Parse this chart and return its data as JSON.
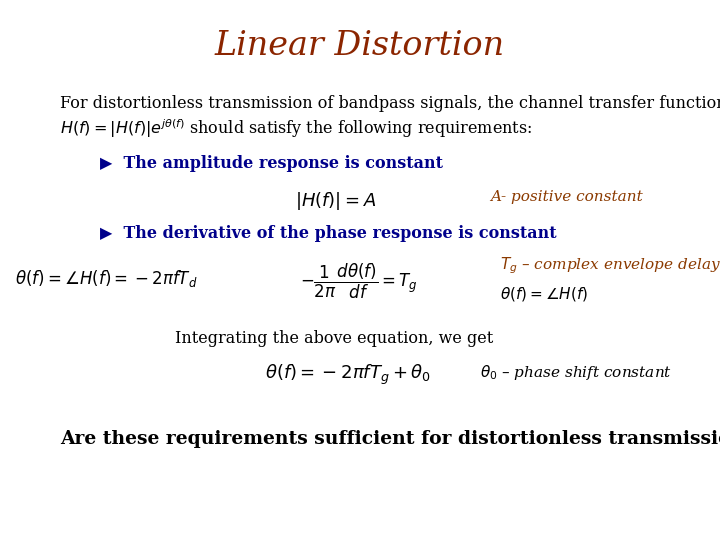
{
  "title": "Linear Distortion",
  "title_color": "#8B2500",
  "title_fontsize": 24,
  "bg_color": "#FFFFFF",
  "body_color": "#000000",
  "blue_color": "#00008B",
  "orange_color": "#8B3A00",
  "line1": "For distortionless transmission of bandpass signals, the channel transfer function",
  "line2_suffix": " should satisfy the following requirements:",
  "body_fontsize": 11.5,
  "bullet1_text": "▶  The amplitude response is constant",
  "bullet1_fontsize": 11.5,
  "formula1": "$|H(f)| = A$",
  "formula1_fontsize": 13,
  "annotation1": "A- positive constant",
  "annotation1_fontsize": 11,
  "bullet2_text": "▶  The derivative of the phase response is constant",
  "bullet2_fontsize": 11.5,
  "formula2a": "$\\theta(f) = \\angle H(f) = -2\\pi fT_d$",
  "formula2a_fontsize": 12,
  "formula2b_line1": "$-\\dfrac{1}{2\\pi}\\dfrac{d\\theta(f)}{df} = T_g$",
  "formula2b_fontsize": 12,
  "annotation2a": "$T_g$ – complex envelope delay",
  "annotation2a_fontsize": 11,
  "annotation2b": "$\\theta(f) = \\angle H(f)$",
  "annotation2b_fontsize": 11,
  "integrating_text": "Integrating the above equation, we get",
  "integrating_fontsize": 11.5,
  "formula3": "$\\theta(f) = -2\\pi fT_g + \\theta_0$",
  "formula3_fontsize": 13,
  "annotation3": "$\\theta_0$ – phase shift constant",
  "annotation3_fontsize": 11,
  "final_text": "Are these requirements sufficient for distortionless transmission?",
  "final_fontsize": 13.5,
  "hf_formula": "$H(f) = |H(f)|e^{j\\theta(f)}$",
  "hf_fontsize": 11.5
}
